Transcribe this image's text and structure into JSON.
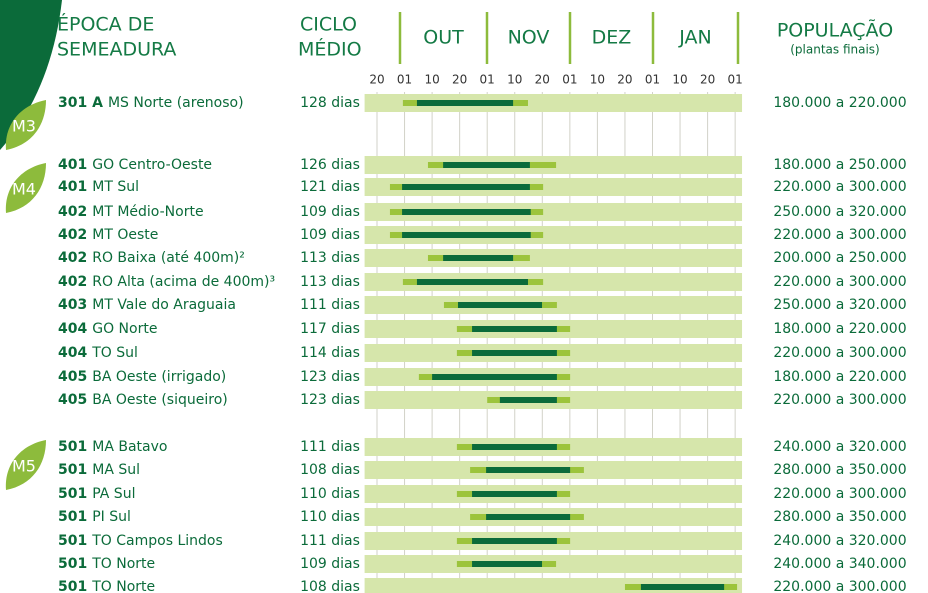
{
  "header": {
    "sowing": [
      "ÉPOCA DE",
      "SEMEADURA"
    ],
    "cycle": [
      "CICLO",
      "MÉDIO"
    ],
    "months": [
      "OUT",
      "NOV",
      "DEZ",
      "JAN"
    ],
    "population": "POPULAÇÃO",
    "population_note": "(plantas finais)"
  },
  "xlim": [
    -0.45,
    13.25
  ],
  "xticks": [
    {
      "value": 0,
      "label": "20"
    },
    {
      "value": 1,
      "label": "01"
    },
    {
      "value": 2,
      "label": "10"
    },
    {
      "value": 3,
      "label": "20"
    },
    {
      "value": 4,
      "label": "01"
    },
    {
      "value": 5,
      "label": "10"
    },
    {
      "value": 6,
      "label": "20"
    },
    {
      "value": 7,
      "label": "01"
    },
    {
      "value": 8,
      "label": "10"
    },
    {
      "value": 9,
      "label": "20"
    },
    {
      "value": 10,
      "label": "01"
    },
    {
      "value": 11,
      "label": "10"
    },
    {
      "value": 12,
      "label": "20"
    },
    {
      "value": 13,
      "label": "01"
    }
  ],
  "groups": [
    {
      "label": "M3",
      "rows": [
        {
          "code": "301 A",
          "region": "MS Norte (arenoso)",
          "cycle": "128 dias",
          "population": "180.000 a 220.000",
          "light": [
            0.94,
            5.48
          ],
          "dark": [
            1.45,
            4.94
          ]
        }
      ]
    },
    {
      "label": "M4",
      "rows": [
        {
          "code": "401",
          "region": "GO Centro-Oeste",
          "cycle": "126 dias",
          "population": "180.000 a 250.000",
          "light": [
            1.85,
            6.5
          ],
          "dark": [
            2.4,
            5.55
          ]
        },
        {
          "code": "401",
          "region": "MT Sul",
          "cycle": "121 dias",
          "population": "220.000 a 300.000",
          "light": [
            0.47,
            6.03
          ],
          "dark": [
            0.91,
            5.55
          ]
        },
        {
          "code": "402",
          "region": "MT Médio-Norte",
          "cycle": "109 dias",
          "population": "250.000 a 320.000",
          "light": [
            0.47,
            6.03
          ],
          "dark": [
            0.91,
            5.58
          ]
        },
        {
          "code": "402",
          "region": "MT Oeste",
          "cycle": "109 dias",
          "population": "220.000 a 300.000",
          "light": [
            0.47,
            6.03
          ],
          "dark": [
            0.91,
            5.58
          ]
        },
        {
          "code": "402",
          "region": "RO Baixa (até 400m)²",
          "cycle": "113 dias",
          "population": "200.000 a 250.000",
          "light": [
            1.85,
            5.55
          ],
          "dark": [
            2.4,
            4.94
          ]
        },
        {
          "code": "402",
          "region": "RO Alta (acima de 400m)³",
          "cycle": "113 dias",
          "population": "220.000 a 300.000",
          "light": [
            0.94,
            6.03
          ],
          "dark": [
            1.45,
            5.48
          ]
        },
        {
          "code": "403",
          "region": "MT Vale do Araguaia",
          "cycle": "111 dias",
          "population": "250.000 a 320.000",
          "light": [
            2.43,
            6.53
          ],
          "dark": [
            2.94,
            5.99
          ]
        },
        {
          "code": "404",
          "region": "GO Norte",
          "cycle": "117 dias",
          "population": "180.000 a 220.000",
          "light": [
            2.9,
            7.01
          ],
          "dark": [
            3.45,
            6.53
          ]
        },
        {
          "code": "404",
          "region": "TO Sul",
          "cycle": "114 dias",
          "population": "220.000 a 300.000",
          "light": [
            2.9,
            7.01
          ],
          "dark": [
            3.45,
            6.53
          ]
        },
        {
          "code": "405",
          "region": "BA Oeste (irrigado)",
          "cycle": "123 dias",
          "population": "180.000 a 220.000",
          "light": [
            1.52,
            7.01
          ],
          "dark": [
            2.0,
            6.53
          ]
        },
        {
          "code": "405",
          "region": "BA Oeste (siqueiro)",
          "cycle": "123 dias",
          "population": "220.000 a 300.000",
          "light": [
            4.0,
            7.01
          ],
          "dark": [
            4.46,
            6.53
          ]
        }
      ]
    },
    {
      "label": "M5",
      "rows": [
        {
          "code": "501",
          "region": "MA Batavo",
          "cycle": "111 dias",
          "population": "240.000 a 320.000",
          "light": [
            2.9,
            7.01
          ],
          "dark": [
            3.45,
            6.53
          ]
        },
        {
          "code": "501",
          "region": "MA Sul",
          "cycle": "108 dias",
          "population": "280.000 a 350.000",
          "light": [
            3.38,
            7.51
          ],
          "dark": [
            3.96,
            7.01
          ]
        },
        {
          "code": "501",
          "region": "PA Sul",
          "cycle": "110 dias",
          "population": "220.000 a 300.000",
          "light": [
            2.9,
            7.01
          ],
          "dark": [
            3.45,
            6.53
          ]
        },
        {
          "code": "501",
          "region": "PI Sul",
          "cycle": "110 dias",
          "population": "280.000 a 350.000",
          "light": [
            3.38,
            7.51
          ],
          "dark": [
            3.96,
            7.01
          ]
        },
        {
          "code": "501",
          "region": "TO Campos Lindos",
          "cycle": "111 dias",
          "population": "240.000 a 320.000",
          "light": [
            2.9,
            7.01
          ],
          "dark": [
            3.45,
            6.53
          ]
        },
        {
          "code": "501",
          "region": "TO Norte",
          "cycle": "109 dias",
          "population": "240.000 a 340.000",
          "light": [
            2.9,
            6.5
          ],
          "dark": [
            3.45,
            5.99
          ]
        },
        {
          "code": "501",
          "region": "TO Norte",
          "cycle": "108 dias",
          "population": "220.000 a 300.000",
          "light": [
            9.0,
            13.07
          ],
          "dark": [
            9.58,
            12.6
          ]
        }
      ]
    }
  ]
}
